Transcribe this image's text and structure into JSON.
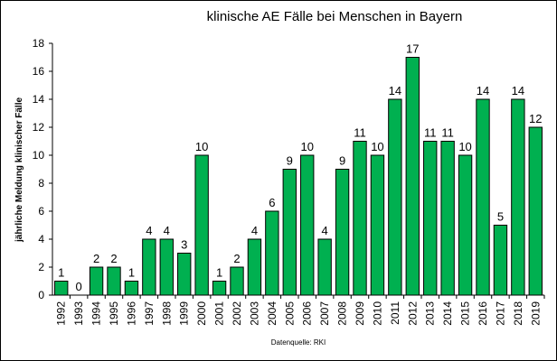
{
  "chart_data": {
    "type": "bar",
    "title": "klinische AE Fälle bei Menschen in Bayern",
    "ylabel": "jährliche Meldung klinischer Fälle",
    "xlabel": "",
    "source": "Datenquelle:  RKI",
    "categories": [
      "1992",
      "1993",
      "1994",
      "1995",
      "1996",
      "1997",
      "1998",
      "1999",
      "2000",
      "2001",
      "2002",
      "2003",
      "2004",
      "2005",
      "2006",
      "2007",
      "2008",
      "2009",
      "2010",
      "2011",
      "2012",
      "2013",
      "2014",
      "2015",
      "2016",
      "2017",
      "2018",
      "2019"
    ],
    "values": [
      1,
      0,
      2,
      2,
      1,
      4,
      4,
      3,
      10,
      1,
      2,
      4,
      6,
      9,
      10,
      4,
      9,
      11,
      10,
      14,
      17,
      11,
      11,
      10,
      14,
      5,
      14,
      12
    ],
    "ylim": [
      0,
      18
    ],
    "yticks": [
      0,
      2,
      4,
      6,
      8,
      10,
      12,
      14,
      16,
      18
    ],
    "grid": false,
    "bar_color": "#00b050",
    "bar_edge_color": "#000000"
  }
}
